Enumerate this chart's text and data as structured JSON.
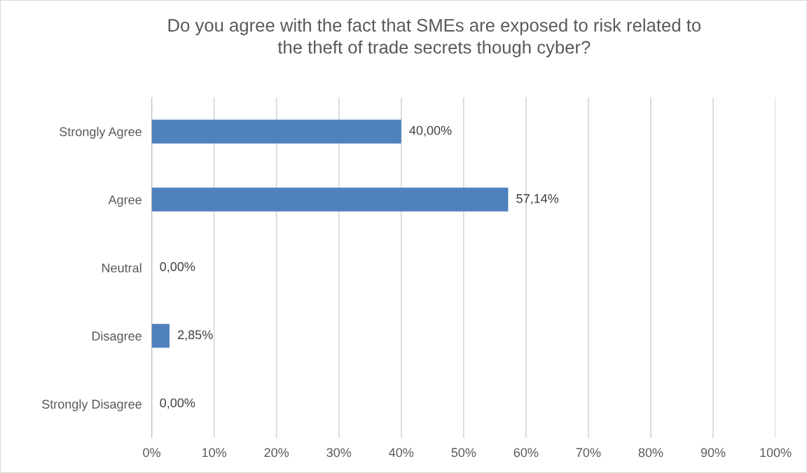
{
  "chart_data": {
    "type": "bar",
    "orientation": "horizontal",
    "title": "Do you agree with the fact that SMEs are exposed to risk related to\nthe theft of trade secrets though cyber?",
    "categories": [
      "Strongly Agree",
      "Agree",
      "Neutral",
      "Disagree",
      "Strongly Disagree"
    ],
    "values": [
      40,
      57.14,
      0,
      2.85,
      0
    ],
    "value_labels": [
      "40,00%",
      "57,14%",
      "0,00%",
      "2,85%",
      "0,00%"
    ],
    "color": "#4f81bd",
    "xlim": [
      0,
      100
    ],
    "xticks": [
      {
        "value": 0,
        "label": "0%"
      },
      {
        "value": 10,
        "label": "10%"
      },
      {
        "value": 20,
        "label": "20%"
      },
      {
        "value": 30,
        "label": "30%"
      },
      {
        "value": 40,
        "label": "40%"
      },
      {
        "value": 50,
        "label": "50%"
      },
      {
        "value": 60,
        "label": "60%"
      },
      {
        "value": 70,
        "label": "70%"
      },
      {
        "value": 80,
        "label": "80%"
      },
      {
        "value": 90,
        "label": "90%"
      },
      {
        "value": 100,
        "label": "100%"
      }
    ],
    "grid": "x",
    "legend": false
  }
}
